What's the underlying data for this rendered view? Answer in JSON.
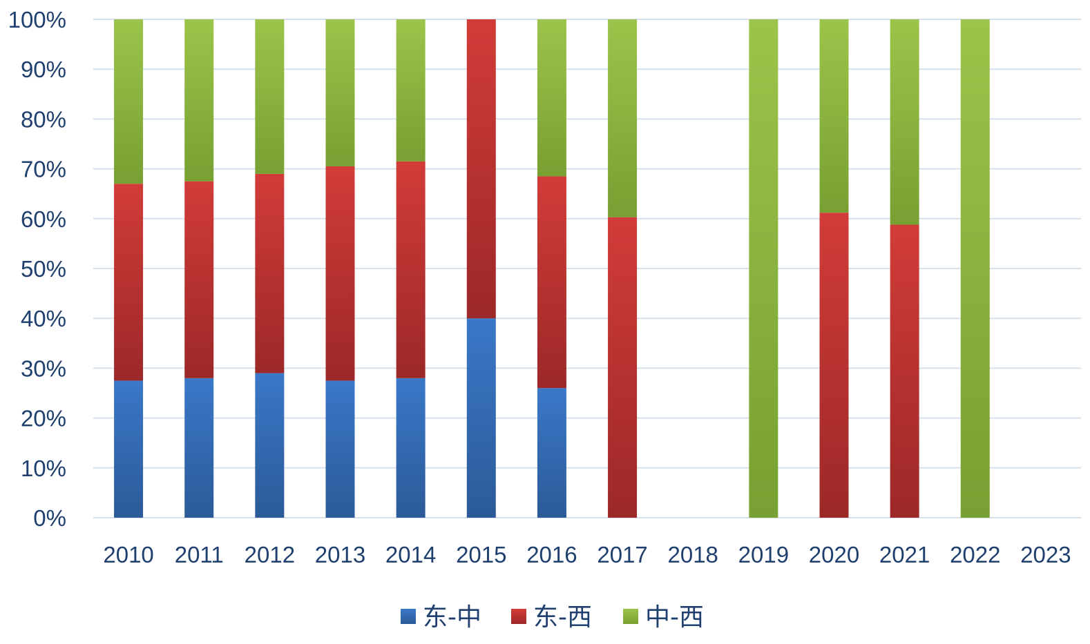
{
  "chart_data": {
    "type": "bar",
    "stacked": true,
    "percent": true,
    "title": "",
    "xlabel": "",
    "ylabel": "",
    "ylim": [
      0,
      100
    ],
    "yticks": [
      "0%",
      "10%",
      "20%",
      "30%",
      "40%",
      "50%",
      "60%",
      "70%",
      "80%",
      "90%",
      "100%"
    ],
    "grid": true,
    "legend_position": "bottom-center",
    "categories": [
      "2010",
      "2011",
      "2012",
      "2013",
      "2014",
      "2015",
      "2016",
      "2017",
      "2018",
      "2019",
      "2020",
      "2021",
      "2022",
      "2023"
    ],
    "series": [
      {
        "name": "东-中",
        "color": "#3a78c8",
        "color_dark": "#2c5a98",
        "values": [
          27.5,
          28,
          29,
          27.5,
          28,
          40,
          26,
          0,
          0,
          0,
          0,
          0,
          0,
          0
        ]
      },
      {
        "name": "东-西",
        "color": "#d23c38",
        "color_dark": "#9c2828",
        "values": [
          39.5,
          39.5,
          40,
          43,
          43.5,
          60,
          42.5,
          60.3,
          0,
          0,
          61.2,
          58.8,
          0,
          0
        ]
      },
      {
        "name": "中-西",
        "color": "#9cc44a",
        "color_dark": "#78a032",
        "values": [
          33,
          32.5,
          31,
          29.5,
          28.5,
          0,
          31.5,
          39.7,
          0,
          100,
          38.8,
          41.2,
          100,
          0
        ]
      }
    ]
  }
}
